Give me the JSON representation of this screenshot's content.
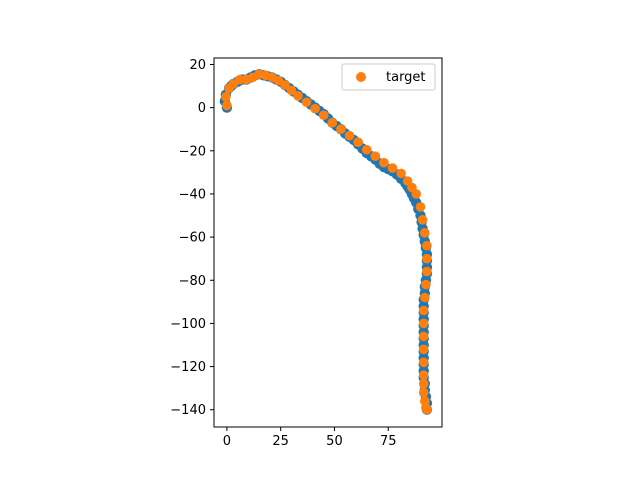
{
  "chart_data": {
    "type": "scatter",
    "title": "",
    "xlabel": "",
    "ylabel": "",
    "xlim": [
      -6,
      100
    ],
    "ylim": [
      -148,
      23
    ],
    "grid": false,
    "x_ticks": [
      0,
      25,
      50,
      75
    ],
    "y_ticks": [
      20,
      0,
      -20,
      -40,
      -60,
      -80,
      -100,
      -120,
      -140
    ],
    "legend": {
      "position": "top-right",
      "entries": [
        "target"
      ]
    },
    "series": [
      {
        "role": "trajectory",
        "color": "#1f77b4",
        "x": [
          0,
          -1,
          -0.5,
          1,
          2,
          3,
          5,
          7,
          9,
          11,
          13,
          15,
          17,
          19,
          21,
          23,
          25,
          27,
          29,
          31,
          33,
          35,
          37,
          39,
          41,
          43,
          45,
          47,
          49,
          51,
          53,
          55,
          57,
          59,
          61,
          63,
          65,
          67,
          69,
          71,
          73,
          75,
          77,
          79,
          81,
          83,
          84,
          85,
          86,
          87,
          88,
          89,
          90,
          90.5,
          91,
          91.5,
          92,
          92.5,
          93,
          93,
          93,
          93,
          92.5,
          92,
          92,
          91.5,
          91.5,
          91.5,
          91.5,
          91.5,
          91.5,
          91.5,
          91.5,
          91.5,
          91.5,
          91.5,
          91.5,
          91.5,
          92,
          92,
          92.5,
          93,
          93
        ],
        "y": [
          0,
          3,
          6,
          9,
          10,
          11,
          12,
          13,
          13,
          14,
          15,
          15.5,
          15,
          14.5,
          14,
          13,
          12,
          10.5,
          9,
          7.5,
          6,
          4.5,
          3,
          1.5,
          0,
          -1.5,
          -3,
          -5,
          -7,
          -8.5,
          -10,
          -12,
          -13.5,
          -15,
          -17,
          -19,
          -21,
          -22.5,
          -24,
          -26,
          -27.5,
          -28.5,
          -29.5,
          -31,
          -33,
          -35,
          -36.5,
          -38,
          -40,
          -42,
          -44,
          -47,
          -50,
          -53,
          -56,
          -59,
          -62,
          -65,
          -68,
          -71,
          -74,
          -77,
          -80,
          -83,
          -86,
          -89,
          -92,
          -95,
          -98,
          -101,
          -104,
          -107,
          -110,
          -113,
          -116,
          -119,
          -122,
          -125,
          -128,
          -131,
          -134,
          -137,
          -140
        ]
      },
      {
        "name": "target",
        "role": "target",
        "color": "#ff7f0e",
        "x": [
          0,
          -0.5,
          1,
          3,
          6,
          9,
          12,
          15,
          18,
          21,
          24,
          27,
          30,
          33,
          37,
          41,
          45,
          49,
          53,
          57,
          61,
          65,
          69,
          73,
          77,
          81,
          84,
          86,
          88,
          90,
          91,
          92,
          93,
          93,
          93,
          92.5,
          92,
          91.5,
          91.5,
          91.5,
          91.5,
          91.5,
          91.5,
          91.5,
          91.5,
          92,
          92.5,
          93
        ],
        "y": [
          1,
          5,
          9,
          11,
          13,
          13,
          14,
          15.5,
          15,
          14,
          12.5,
          10.5,
          8,
          5.5,
          2.5,
          -0.5,
          -3.5,
          -7,
          -10,
          -13,
          -16,
          -19.5,
          -22.5,
          -25.5,
          -28,
          -30.5,
          -34,
          -37,
          -40,
          -46,
          -52,
          -58,
          -64,
          -70,
          -76,
          -82,
          -88,
          -94,
          -100,
          -106,
          -112,
          -118,
          -124,
          -128,
          -132,
          -136,
          -139,
          -140
        ]
      }
    ]
  }
}
